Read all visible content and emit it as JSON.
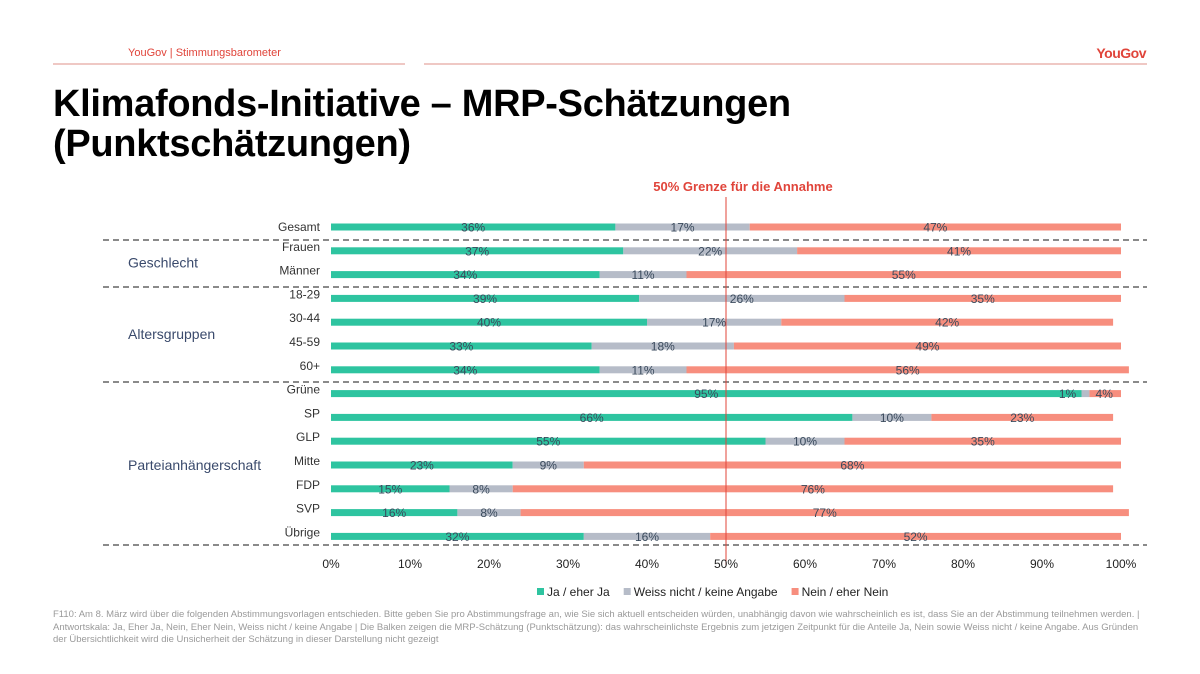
{
  "header": {
    "brand_line": "YouGov | Stimmungsbarometer",
    "logo": "YouGov"
  },
  "title": "Klimafonds-Initiative – MRP-Schätzungen (Punktschätzungen)",
  "footnote": "F110: Am 8. März wird über die folgenden Abstimmungsvorlagen entschieden. Bitte geben Sie pro Abstimmungsfrage an, wie Sie sich aktuell entscheiden würden, unabhängig davon wie wahrscheinlich es ist, dass Sie an der Abstimmung teilnehmen werden. | Antwortskala: Ja, Eher Ja, Nein, Eher Nein, Weiss nicht / keine Angabe | Die Balken zeigen die MRP-Schätzung (Punktschätzung): das wahrscheinlichste Ergebnis zum jetzigen Zeitpunkt für die Anteile Ja, Nein sowie Weiss nicht / keine Angabe. Aus Gründen der Übersichtlichkeit wird die Unsicherheit der Schätzung in dieser Darstellung nicht gezeigt",
  "chart_data": {
    "type": "bar",
    "orientation": "horizontal-stacked",
    "annotation": "50% Grenze für die Annahme",
    "threshold": 50,
    "categories": [
      "Gesamt",
      "Frauen",
      "Männer",
      "18-29",
      "30-44",
      "45-59",
      "60+",
      "Grüne",
      "SP",
      "GLP",
      "Mitte",
      "FDP",
      "SVP",
      "Übrige"
    ],
    "groups": [
      {
        "label": "Geschlecht",
        "members": [
          "Frauen",
          "Männer"
        ]
      },
      {
        "label": "Altersgruppen",
        "members": [
          "18-29",
          "30-44",
          "45-59",
          "60+"
        ]
      },
      {
        "label": "Parteianhängerschaft",
        "members": [
          "Grüne",
          "SP",
          "GLP",
          "Mitte",
          "FDP",
          "SVP",
          "Übrige"
        ]
      }
    ],
    "series": [
      {
        "name": "Ja / eher Ja",
        "color": "#2ec4a0",
        "values": [
          36,
          37,
          34,
          39,
          40,
          33,
          34,
          95,
          66,
          55,
          23,
          15,
          16,
          32
        ]
      },
      {
        "name": "Weiss nicht / keine Angabe",
        "color": "#b6bcc8",
        "values": [
          17,
          22,
          11,
          26,
          17,
          18,
          11,
          1,
          10,
          10,
          9,
          8,
          8,
          16
        ]
      },
      {
        "name": "Nein / eher Nein",
        "color": "#f78e7e",
        "values": [
          47,
          41,
          55,
          35,
          42,
          49,
          56,
          4,
          23,
          35,
          68,
          76,
          77,
          52
        ]
      }
    ],
    "xlim": [
      0,
      100
    ],
    "xticks": [
      "0%",
      "10%",
      "20%",
      "30%",
      "40%",
      "50%",
      "60%",
      "70%",
      "80%",
      "90%",
      "100%"
    ],
    "legend_position": "bottom"
  }
}
